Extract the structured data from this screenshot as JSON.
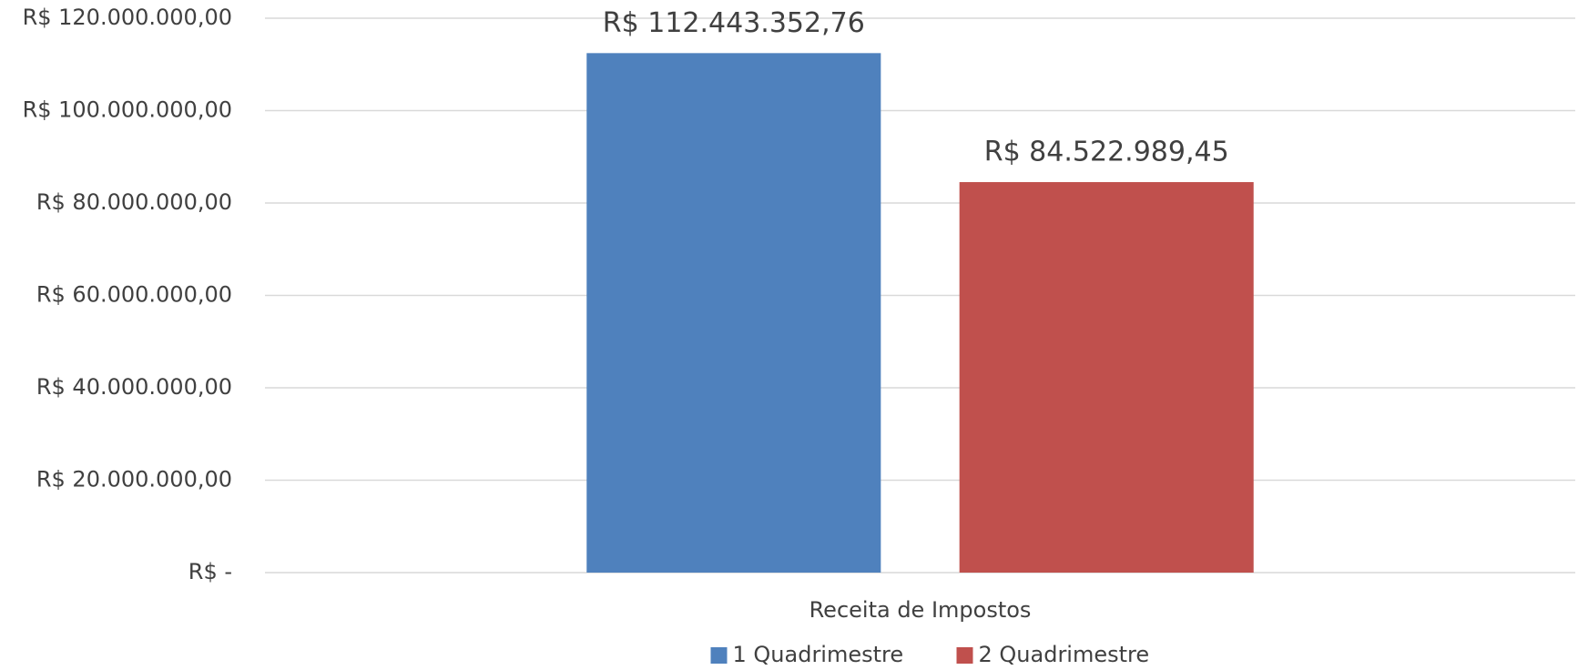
{
  "chart_data": {
    "type": "bar",
    "categories": [
      "Receita de Impostos"
    ],
    "series": [
      {
        "name": "1 Quadrimestre",
        "color": "#4f81bd",
        "values": [
          112443352.76
        ],
        "value_labels": [
          "R$ 112.443.352,76"
        ]
      },
      {
        "name": "2 Quadrimestre",
        "color": "#c0504d",
        "values": [
          84522989.45
        ],
        "value_labels": [
          "R$ 84.522.989,45"
        ]
      }
    ],
    "ylim": [
      0,
      120000000
    ],
    "yticks": [
      {
        "value": 0,
        "label": "R$ -"
      },
      {
        "value": 20000000,
        "label": "R$ 20.000.000,00"
      },
      {
        "value": 40000000,
        "label": "R$ 40.000.000,00"
      },
      {
        "value": 60000000,
        "label": "R$ 60.000.000,00"
      },
      {
        "value": 80000000,
        "label": "R$ 80.000.000,00"
      },
      {
        "value": 100000000,
        "label": "R$ 100.000.000,00"
      },
      {
        "value": 120000000,
        "label": "R$ 120.000.000,00"
      }
    ],
    "grid": true,
    "legend": "bottom"
  }
}
